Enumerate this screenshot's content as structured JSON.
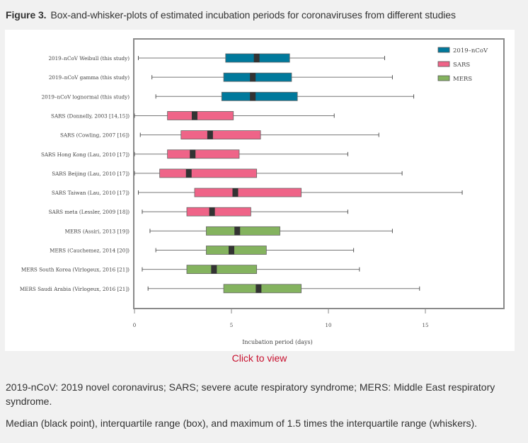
{
  "figure": {
    "number": "Figure 3.",
    "title": "Box-and-whisker-plots of estimated incubation periods for coronaviruses from different studies"
  },
  "click_to_view": "Click to view",
  "captions": [
    "2019-nCoV: 2019 novel coronavirus; SARS; severe acute respiratory syndrome; MERS: Middle East respiratory syndrome.",
    "Median (black point), interquartile range (box), and maximum of 1.5 times the interquartile range (whiskers)."
  ],
  "colors": {
    "2019-nCoV": "#00799c",
    "SARS": "#ef6488",
    "MERS": "#84b35f",
    "median": "#333333"
  },
  "chart_data": {
    "type": "boxplot",
    "orientation": "horizontal",
    "title": "",
    "xlabel": "Incubation period (days)",
    "ylabel": "",
    "xlim": [
      0,
      19
    ],
    "x_ticks": [
      0,
      5,
      10,
      15
    ],
    "x_tick_labels": [
      "0",
      "5",
      "10",
      "15"
    ],
    "grid": false,
    "legend": {
      "position": "top-right",
      "entries": [
        "2019–nCoV",
        "SARS",
        "MERS"
      ]
    },
    "series": [
      {
        "label": "2019–nCoV Weibull (this study)",
        "group": "2019-nCoV",
        "whisker_low": 0.2,
        "q1": 4.7,
        "median": 6.3,
        "q3": 8.0,
        "whisker_high": 12.9
      },
      {
        "label": "2019–nCoV gamma (this study)",
        "group": "2019-nCoV",
        "whisker_low": 0.9,
        "q1": 4.6,
        "median": 6.1,
        "q3": 8.1,
        "whisker_high": 13.3
      },
      {
        "label": "2019–nCoV lognormal (this study)",
        "group": "2019-nCoV",
        "whisker_low": 1.1,
        "q1": 4.5,
        "median": 6.1,
        "q3": 8.4,
        "whisker_high": 14.4
      },
      {
        "label": "SARS (Donnelly, 2003 [14,15])",
        "group": "SARS",
        "whisker_low": 0.0,
        "q1": 1.7,
        "median": 3.1,
        "q3": 5.1,
        "whisker_high": 10.3
      },
      {
        "label": "SARS (Cowling, 2007 [16])",
        "group": "SARS",
        "whisker_low": 0.3,
        "q1": 2.4,
        "median": 3.9,
        "q3": 6.5,
        "whisker_high": 12.6
      },
      {
        "label": "SARS Hong Kong (Lau, 2010 [17])",
        "group": "SARS",
        "whisker_low": 0.0,
        "q1": 1.7,
        "median": 3.0,
        "q3": 5.4,
        "whisker_high": 11.0
      },
      {
        "label": "SARS Beijing (Lau, 2010 [17])",
        "group": "SARS",
        "whisker_low": 0.0,
        "q1": 1.3,
        "median": 2.8,
        "q3": 6.3,
        "whisker_high": 13.8
      },
      {
        "label": "SARS Taiwan (Lau, 2010 [17])",
        "group": "SARS",
        "whisker_low": 0.2,
        "q1": 3.1,
        "median": 5.2,
        "q3": 8.6,
        "whisker_high": 16.9
      },
      {
        "label": "SARS meta (Lessler, 2009 [18])",
        "group": "SARS",
        "whisker_low": 0.4,
        "q1": 2.7,
        "median": 4.0,
        "q3": 6.0,
        "whisker_high": 11.0
      },
      {
        "label": "MERS (Assiri, 2013 [19])",
        "group": "MERS",
        "whisker_low": 0.8,
        "q1": 3.7,
        "median": 5.3,
        "q3": 7.5,
        "whisker_high": 13.3
      },
      {
        "label": "MERS (Cauchemez, 2014 [20])",
        "group": "MERS",
        "whisker_low": 1.1,
        "q1": 3.7,
        "median": 5.0,
        "q3": 6.8,
        "whisker_high": 11.3
      },
      {
        "label": "MERS South Korea (Virlogeux, 2016 [21])",
        "group": "MERS",
        "whisker_low": 0.4,
        "q1": 2.7,
        "median": 4.1,
        "q3": 6.3,
        "whisker_high": 11.6
      },
      {
        "label": "MERS Saudi Arabia (Virlogeux, 2016 [21])",
        "group": "MERS",
        "whisker_low": 0.7,
        "q1": 4.6,
        "median": 6.4,
        "q3": 8.6,
        "whisker_high": 14.7
      }
    ]
  }
}
